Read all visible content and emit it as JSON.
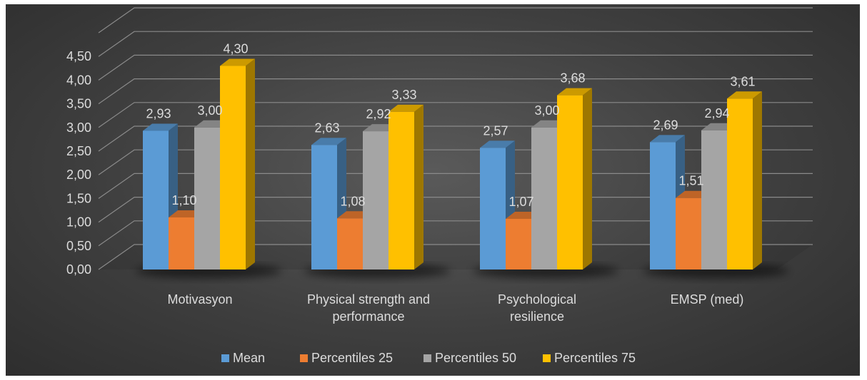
{
  "chart_data": {
    "type": "bar",
    "categories": [
      [
        "Motivasyon"
      ],
      [
        "Physical strength and",
        "performance"
      ],
      [
        "Psychological",
        "resilience"
      ],
      [
        "EMSP (med)"
      ]
    ],
    "series": [
      {
        "name": "Mean",
        "values": [
          2.93,
          2.63,
          2.57,
          2.69
        ],
        "labels": [
          "2,93",
          "2,63",
          "2,57",
          "2,69"
        ],
        "color": "#5B9BD5"
      },
      {
        "name": "Percentiles 25",
        "values": [
          1.1,
          1.08,
          1.07,
          1.51
        ],
        "labels": [
          "1,10",
          "1,08",
          "1,07",
          "1,51"
        ],
        "color": "#ED7D31"
      },
      {
        "name": "Percentiles 50",
        "values": [
          3.0,
          2.92,
          3.0,
          2.94
        ],
        "labels": [
          "3,00",
          "2,92",
          "3,00",
          "2,94"
        ],
        "color": "#A5A5A5"
      },
      {
        "name": "Percentiles 75",
        "values": [
          4.3,
          3.33,
          3.68,
          3.61
        ],
        "labels": [
          "4,30",
          "3,33",
          "3,68",
          "3,61"
        ],
        "color": "#FFC000"
      }
    ],
    "yticks": [
      "0,00",
      "0,50",
      "1,00",
      "1,50",
      "2,00",
      "2,50",
      "3,00",
      "3,50",
      "4,00",
      "4,50"
    ],
    "ylim": [
      0,
      5
    ],
    "grid": true,
    "legend_position": "bottom",
    "style": "3d-clustered-column"
  }
}
